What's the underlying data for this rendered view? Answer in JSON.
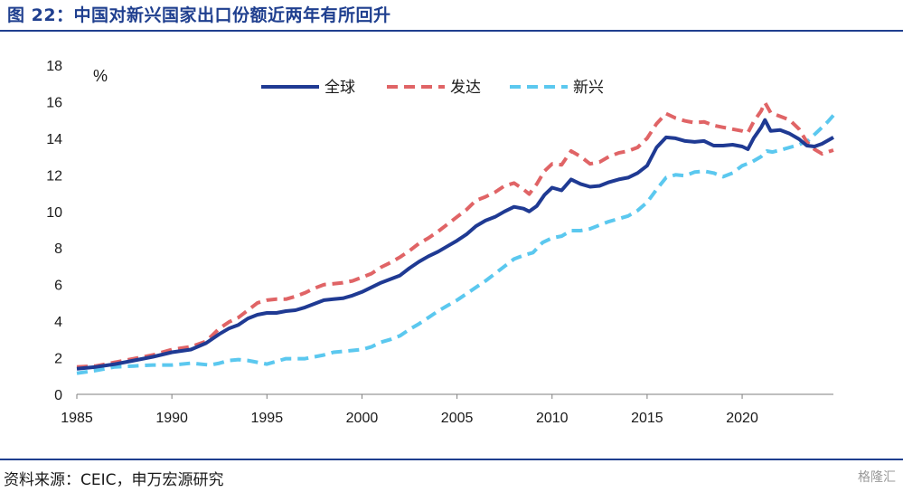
{
  "title": "图 22：中国对新兴国家出口份额近两年有所回升",
  "source": "资料来源：CEIC，申万宏源研究",
  "watermark": "格隆汇",
  "chart_data": {
    "type": "line",
    "title": "",
    "unit_label": "%",
    "xlim": [
      1985,
      2024.8
    ],
    "ylim": [
      0,
      18
    ],
    "x_ticks": [
      1985,
      1990,
      1995,
      2000,
      2005,
      2010,
      2015,
      2020
    ],
    "y_ticks": [
      0,
      2,
      4,
      6,
      8,
      10,
      12,
      14,
      16,
      18
    ],
    "legend_position": "top-center",
    "grid": false,
    "series": [
      {
        "name": "全球",
        "color": "#1f3a93",
        "style": "solid",
        "points": [
          [
            1985,
            1.4
          ],
          [
            1986,
            1.5
          ],
          [
            1987,
            1.65
          ],
          [
            1988,
            1.85
          ],
          [
            1989,
            2.05
          ],
          [
            1990,
            2.3
          ],
          [
            1991,
            2.45
          ],
          [
            1991.8,
            2.8
          ],
          [
            1992.5,
            3.3
          ],
          [
            1993,
            3.6
          ],
          [
            1993.5,
            3.8
          ],
          [
            1994,
            4.15
          ],
          [
            1994.5,
            4.35
          ],
          [
            1995,
            4.45
          ],
          [
            1995.5,
            4.45
          ],
          [
            1996,
            4.55
          ],
          [
            1996.5,
            4.6
          ],
          [
            1997,
            4.75
          ],
          [
            1997.5,
            4.95
          ],
          [
            1998,
            5.15
          ],
          [
            1998.5,
            5.2
          ],
          [
            1999,
            5.25
          ],
          [
            1999.5,
            5.4
          ],
          [
            2000,
            5.6
          ],
          [
            2000.5,
            5.85
          ],
          [
            2001,
            6.1
          ],
          [
            2001.5,
            6.3
          ],
          [
            2002,
            6.5
          ],
          [
            2002.5,
            6.9
          ],
          [
            2003,
            7.25
          ],
          [
            2003.5,
            7.55
          ],
          [
            2004,
            7.8
          ],
          [
            2004.5,
            8.1
          ],
          [
            2005,
            8.4
          ],
          [
            2005.5,
            8.75
          ],
          [
            2006,
            9.2
          ],
          [
            2006.5,
            9.5
          ],
          [
            2007,
            9.7
          ],
          [
            2007.5,
            10.0
          ],
          [
            2008,
            10.25
          ],
          [
            2008.5,
            10.15
          ],
          [
            2008.8,
            10.0
          ],
          [
            2009.2,
            10.3
          ],
          [
            2009.6,
            10.9
          ],
          [
            2010,
            11.3
          ],
          [
            2010.5,
            11.15
          ],
          [
            2011,
            11.75
          ],
          [
            2011.5,
            11.5
          ],
          [
            2012,
            11.35
          ],
          [
            2012.5,
            11.4
          ],
          [
            2013,
            11.6
          ],
          [
            2013.5,
            11.75
          ],
          [
            2014,
            11.85
          ],
          [
            2014.5,
            12.1
          ],
          [
            2015,
            12.5
          ],
          [
            2015.5,
            13.5
          ],
          [
            2016,
            14.05
          ],
          [
            2016.5,
            14.0
          ],
          [
            2017,
            13.85
          ],
          [
            2017.5,
            13.8
          ],
          [
            2018,
            13.85
          ],
          [
            2018.5,
            13.6
          ],
          [
            2019,
            13.6
          ],
          [
            2019.5,
            13.65
          ],
          [
            2020,
            13.55
          ],
          [
            2020.3,
            13.4
          ],
          [
            2020.6,
            14.0
          ],
          [
            2021,
            14.6
          ],
          [
            2021.2,
            15.0
          ],
          [
            2021.5,
            14.4
          ],
          [
            2022,
            14.45
          ],
          [
            2022.5,
            14.25
          ],
          [
            2023,
            13.95
          ],
          [
            2023.4,
            13.6
          ],
          [
            2023.8,
            13.55
          ],
          [
            2024.2,
            13.7
          ],
          [
            2024.8,
            14.05
          ]
        ]
      },
      {
        "name": "发达",
        "color": "#e06466",
        "style": "dashed",
        "points": [
          [
            1985,
            1.5
          ],
          [
            1986,
            1.55
          ],
          [
            1987,
            1.75
          ],
          [
            1988,
            1.95
          ],
          [
            1989,
            2.15
          ],
          [
            1990,
            2.45
          ],
          [
            1991,
            2.6
          ],
          [
            1991.8,
            2.9
          ],
          [
            1992.5,
            3.6
          ],
          [
            1993,
            3.95
          ],
          [
            1993.5,
            4.2
          ],
          [
            1994,
            4.6
          ],
          [
            1994.5,
            5.0
          ],
          [
            1995,
            5.15
          ],
          [
            1995.5,
            5.2
          ],
          [
            1996,
            5.2
          ],
          [
            1996.5,
            5.35
          ],
          [
            1997,
            5.55
          ],
          [
            1997.5,
            5.8
          ],
          [
            1998,
            6.0
          ],
          [
            1998.5,
            6.05
          ],
          [
            1999,
            6.1
          ],
          [
            1999.5,
            6.2
          ],
          [
            2000,
            6.4
          ],
          [
            2000.5,
            6.6
          ],
          [
            2001,
            6.95
          ],
          [
            2001.5,
            7.2
          ],
          [
            2002,
            7.5
          ],
          [
            2002.5,
            7.85
          ],
          [
            2003,
            8.25
          ],
          [
            2003.5,
            8.55
          ],
          [
            2004,
            8.9
          ],
          [
            2004.5,
            9.3
          ],
          [
            2005,
            9.7
          ],
          [
            2005.5,
            10.1
          ],
          [
            2006,
            10.6
          ],
          [
            2006.5,
            10.8
          ],
          [
            2007,
            11.05
          ],
          [
            2007.5,
            11.4
          ],
          [
            2008,
            11.55
          ],
          [
            2008.5,
            11.2
          ],
          [
            2008.8,
            10.95
          ],
          [
            2009.2,
            11.5
          ],
          [
            2009.6,
            12.2
          ],
          [
            2010,
            12.6
          ],
          [
            2010.5,
            12.55
          ],
          [
            2011,
            13.3
          ],
          [
            2011.5,
            13.0
          ],
          [
            2012,
            12.6
          ],
          [
            2012.5,
            12.7
          ],
          [
            2013,
            13.0
          ],
          [
            2013.5,
            13.2
          ],
          [
            2014,
            13.3
          ],
          [
            2014.5,
            13.5
          ],
          [
            2015,
            14.0
          ],
          [
            2015.5,
            14.8
          ],
          [
            2016,
            15.35
          ],
          [
            2016.5,
            15.1
          ],
          [
            2017,
            14.95
          ],
          [
            2017.5,
            14.85
          ],
          [
            2018,
            14.9
          ],
          [
            2018.5,
            14.7
          ],
          [
            2019,
            14.6
          ],
          [
            2019.5,
            14.5
          ],
          [
            2020,
            14.4
          ],
          [
            2020.3,
            14.3
          ],
          [
            2020.6,
            14.9
          ],
          [
            2021,
            15.5
          ],
          [
            2021.2,
            15.95
          ],
          [
            2021.5,
            15.4
          ],
          [
            2022,
            15.2
          ],
          [
            2022.5,
            15.0
          ],
          [
            2023,
            14.5
          ],
          [
            2023.4,
            13.8
          ],
          [
            2023.8,
            13.4
          ],
          [
            2024.2,
            13.15
          ],
          [
            2024.8,
            13.35
          ]
        ]
      },
      {
        "name": "新兴",
        "color": "#5bc8ef",
        "style": "dashed",
        "points": [
          [
            1985,
            1.15
          ],
          [
            1986,
            1.3
          ],
          [
            1987,
            1.5
          ],
          [
            1988,
            1.55
          ],
          [
            1989,
            1.6
          ],
          [
            1990,
            1.6
          ],
          [
            1991,
            1.7
          ],
          [
            1992,
            1.6
          ],
          [
            1992.5,
            1.7
          ],
          [
            1993,
            1.85
          ],
          [
            1993.5,
            1.9
          ],
          [
            1994,
            1.85
          ],
          [
            1994.5,
            1.75
          ],
          [
            1995,
            1.65
          ],
          [
            1995.5,
            1.8
          ],
          [
            1996,
            1.95
          ],
          [
            1996.5,
            1.95
          ],
          [
            1997,
            1.95
          ],
          [
            1997.5,
            2.05
          ],
          [
            1998,
            2.15
          ],
          [
            1998.5,
            2.3
          ],
          [
            1999,
            2.35
          ],
          [
            1999.5,
            2.4
          ],
          [
            2000,
            2.45
          ],
          [
            2000.5,
            2.6
          ],
          [
            2001,
            2.85
          ],
          [
            2001.5,
            3.0
          ],
          [
            2002,
            3.2
          ],
          [
            2002.5,
            3.55
          ],
          [
            2003,
            3.85
          ],
          [
            2003.5,
            4.2
          ],
          [
            2004,
            4.55
          ],
          [
            2004.5,
            4.85
          ],
          [
            2005,
            5.15
          ],
          [
            2005.5,
            5.5
          ],
          [
            2006,
            5.85
          ],
          [
            2006.5,
            6.2
          ],
          [
            2007,
            6.6
          ],
          [
            2007.5,
            7.0
          ],
          [
            2008,
            7.4
          ],
          [
            2008.5,
            7.6
          ],
          [
            2009,
            7.75
          ],
          [
            2009.5,
            8.3
          ],
          [
            2010,
            8.55
          ],
          [
            2010.5,
            8.65
          ],
          [
            2011,
            8.95
          ],
          [
            2011.5,
            8.95
          ],
          [
            2012,
            9.05
          ],
          [
            2012.5,
            9.25
          ],
          [
            2013,
            9.45
          ],
          [
            2013.5,
            9.6
          ],
          [
            2014,
            9.75
          ],
          [
            2014.5,
            10.05
          ],
          [
            2015,
            10.5
          ],
          [
            2015.5,
            11.2
          ],
          [
            2016,
            11.85
          ],
          [
            2016.5,
            12.0
          ],
          [
            2017,
            11.95
          ],
          [
            2017.5,
            12.15
          ],
          [
            2018,
            12.2
          ],
          [
            2018.5,
            12.1
          ],
          [
            2019,
            11.9
          ],
          [
            2019.5,
            12.1
          ],
          [
            2020,
            12.5
          ],
          [
            2020.5,
            12.7
          ],
          [
            2021,
            13.0
          ],
          [
            2021.3,
            13.3
          ],
          [
            2021.6,
            13.25
          ],
          [
            2022,
            13.35
          ],
          [
            2022.5,
            13.5
          ],
          [
            2023,
            13.65
          ],
          [
            2023.5,
            13.9
          ],
          [
            2024,
            14.4
          ],
          [
            2024.5,
            14.9
          ],
          [
            2024.8,
            15.25
          ]
        ]
      }
    ]
  }
}
